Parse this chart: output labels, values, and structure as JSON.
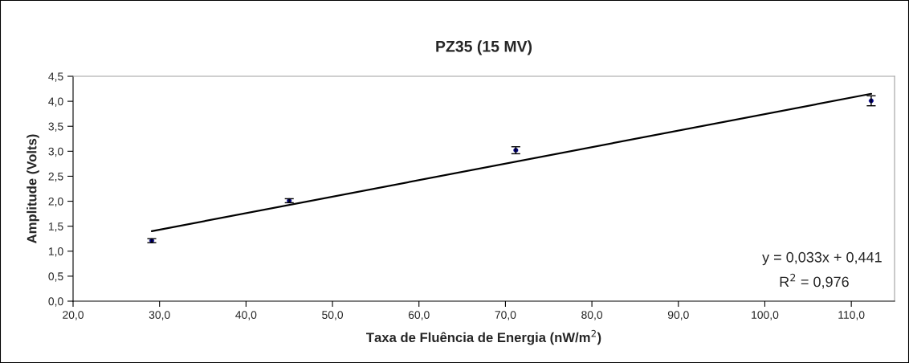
{
  "chart_data": {
    "type": "scatter",
    "title": "PZ35 (15 MV)",
    "xlabel": "Taxa de Fluência de Energia (nW/m$^{2}$)",
    "ylabel": "Amplitude (Volts)",
    "series": [
      {
        "color": "#000080",
        "x": [
          29.1,
          45.0,
          71.2,
          112.3
        ],
        "values": [
          1.21,
          2.01,
          3.02,
          4.01
        ],
        "errors": [
          0.04,
          0.04,
          0.07,
          0.1
        ],
        "marker": "circle"
      },
      {
        "type": "line",
        "color": "#000000",
        "x": [
          29.1,
          112.3
        ],
        "values": [
          1.4,
          4.15
        ],
        "line_style": "solid"
      }
    ],
    "annotations": [
      "y = 0,033x + 0,441",
      "R$^{2}$ = 0,976"
    ],
    "xlim": [
      20,
      115
    ],
    "ylim": [
      0,
      4.5
    ],
    "xticks": [
      {
        "value": 20,
        "label": "20,0"
      },
      {
        "value": 30,
        "label": "30,0"
      },
      {
        "value": 40,
        "label": "40,0"
      },
      {
        "value": 50,
        "label": "50,0"
      },
      {
        "value": 60,
        "label": "60,0"
      },
      {
        "value": 70,
        "label": "70,0"
      },
      {
        "value": 80,
        "label": "80,0"
      },
      {
        "value": 90,
        "label": "90,0"
      },
      {
        "value": 100,
        "label": "100,0"
      },
      {
        "value": 110,
        "label": "110,0"
      }
    ],
    "yticks": [
      {
        "value": 0,
        "label": "0,0"
      },
      {
        "value": 0.5,
        "label": "0,5"
      },
      {
        "value": 1,
        "label": "1,0"
      },
      {
        "value": 1.5,
        "label": "1,5"
      },
      {
        "value": 2,
        "label": "2,0"
      },
      {
        "value": 2.5,
        "label": "2,5"
      },
      {
        "value": 3,
        "label": "3,0"
      },
      {
        "value": 3.5,
        "label": "3,5"
      },
      {
        "value": 4,
        "label": "4,0"
      },
      {
        "value": 4.5,
        "label": "4,5"
      }
    ],
    "grid": false,
    "legend": false
  }
}
